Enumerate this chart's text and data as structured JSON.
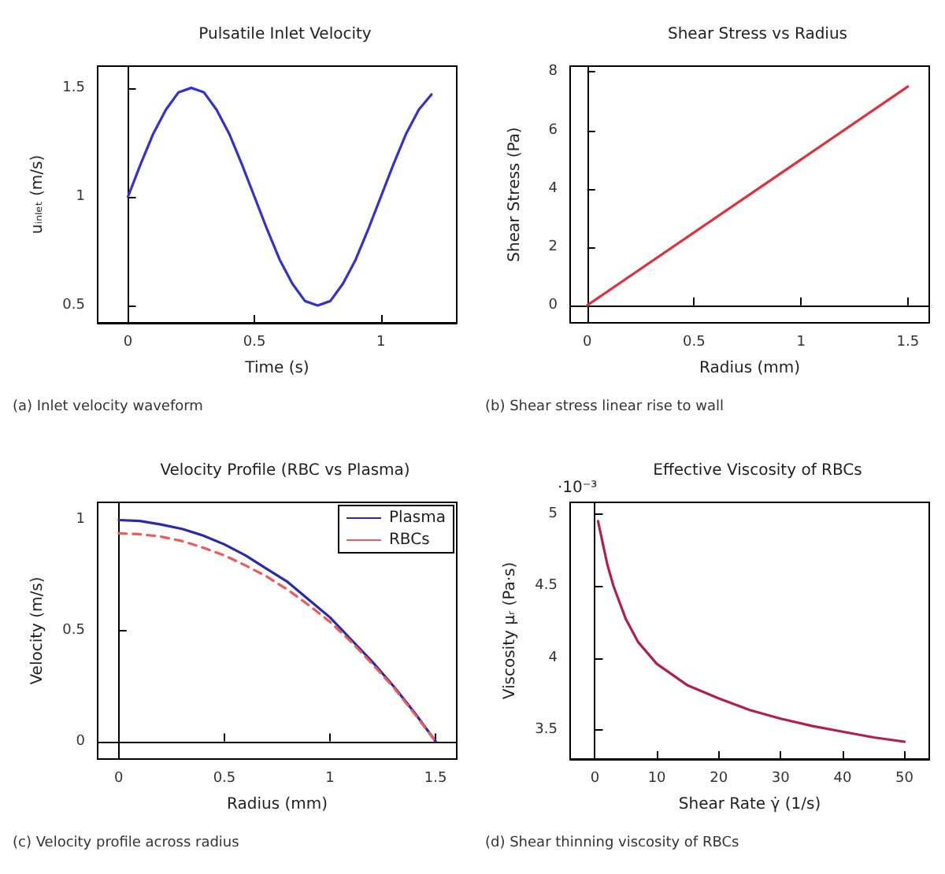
{
  "chart_data": [
    {
      "type": "line",
      "title": "Pulsatile Inlet Velocity",
      "xlabel": "Time (s)",
      "ylabel": "uᵢₙₗₑₜ (m/s)",
      "annotations": [
        "(a) Inlet velocity waveform"
      ],
      "xlim": [
        -0.12,
        1.3
      ],
      "xticks": [
        0,
        0.5,
        1
      ],
      "ylim": [
        0.42,
        1.6
      ],
      "yticks": [
        0.5,
        1,
        1.5
      ],
      "series": [
        {
          "color": "#3333cc",
          "x": [
            0,
            0.05,
            0.1,
            0.15,
            0.2,
            0.25,
            0.3,
            0.35,
            0.4,
            0.45,
            0.5,
            0.55,
            0.6,
            0.65,
            0.7,
            0.75,
            0.8,
            0.85,
            0.9,
            0.95,
            1,
            1.05,
            1.1,
            1.15,
            1.2
          ],
          "values": [
            1,
            1.15,
            1.29,
            1.4,
            1.48,
            1.5,
            1.48,
            1.4,
            1.29,
            1.15,
            1,
            0.85,
            0.71,
            0.6,
            0.52,
            0.5,
            0.52,
            0.6,
            0.71,
            0.85,
            1,
            1.15,
            1.29,
            1.4,
            1.47
          ]
        }
      ]
    },
    {
      "type": "line",
      "title": "Shear Stress vs Radius",
      "xlabel": "Radius (mm)",
      "ylabel": "Shear Stress (Pa)",
      "annotations": [
        "(b) Shear stress linear rise to wall"
      ],
      "xlim": [
        -0.08,
        1.6
      ],
      "xticks": [
        0,
        0.5,
        1,
        1.5
      ],
      "ylim": [
        -0.6,
        8.2
      ],
      "yticks": [
        0,
        2,
        4,
        6,
        8
      ],
      "series": [
        {
          "color": "#e0303c",
          "x": [
            0,
            1.5
          ],
          "values": [
            0,
            7.5
          ]
        }
      ]
    },
    {
      "type": "line",
      "title": "Velocity Profile (RBC vs Plasma)",
      "xlabel": "Radius (mm)",
      "ylabel": "Velocity (m/s)",
      "annotations": [
        "(c) Velocity profile across radius"
      ],
      "xlim": [
        -0.1,
        1.6
      ],
      "xticks": [
        0,
        0.5,
        1,
        1.5
      ],
      "ylim": [
        -0.08,
        1.08
      ],
      "yticks": [
        0,
        0.5,
        1
      ],
      "legend": "top right",
      "series": [
        {
          "name": "Plasma",
          "color": "#2a2aaa",
          "line_style": "solid",
          "x": [
            0,
            0.1,
            0.2,
            0.3,
            0.4,
            0.5,
            0.6,
            0.7,
            0.8,
            0.9,
            1,
            1.1,
            1.2,
            1.3,
            1.4,
            1.5
          ],
          "values": [
            1,
            0.996,
            0.98,
            0.96,
            0.93,
            0.89,
            0.84,
            0.78,
            0.72,
            0.64,
            0.56,
            0.46,
            0.36,
            0.25,
            0.13,
            0
          ]
        },
        {
          "name": "RBCs",
          "color": "#f05a5a",
          "line_style": "dashed",
          "x": [
            0,
            0.1,
            0.2,
            0.3,
            0.4,
            0.5,
            0.6,
            0.7,
            0.8,
            0.9,
            1,
            1.1,
            1.2,
            1.3,
            1.4,
            1.5
          ],
          "values": [
            0.94,
            0.936,
            0.925,
            0.905,
            0.875,
            0.84,
            0.795,
            0.745,
            0.685,
            0.615,
            0.54,
            0.45,
            0.35,
            0.245,
            0.125,
            0
          ]
        }
      ]
    },
    {
      "type": "line",
      "title": "Effective Viscosity of RBCs",
      "xlabel": "Shear Rate γ̇ (1/s)",
      "ylabel": "Viscosity μᵣ (Pa·s)",
      "annotations": [
        "·10⁻³",
        "(d) Shear thinning viscosity of RBCs"
      ],
      "xlim": [
        -4,
        54
      ],
      "xticks": [
        0,
        10,
        20,
        30,
        40,
        50
      ],
      "ylim": [
        3.3,
        5.08
      ],
      "yticks": [
        3.5,
        4,
        4.5,
        5
      ],
      "series": [
        {
          "color": "#b0204a",
          "x": [
            0.5,
            1,
            2,
            3,
            5,
            7,
            10,
            15,
            20,
            25,
            30,
            35,
            40,
            45,
            50
          ],
          "values": [
            4.95,
            4.85,
            4.65,
            4.5,
            4.27,
            4.11,
            3.96,
            3.81,
            3.72,
            3.64,
            3.58,
            3.53,
            3.49,
            3.45,
            3.42
          ]
        }
      ]
    }
  ]
}
